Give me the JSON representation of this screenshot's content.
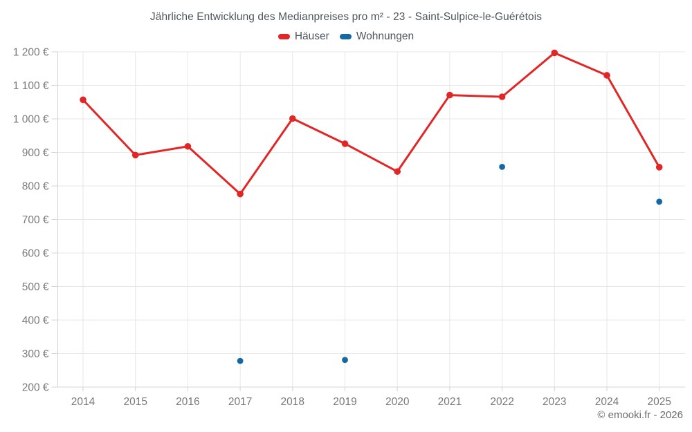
{
  "title": "Jährliche Entwicklung des Medianpreises pro m² - 23 - Saint-Sulpice-le-Guérétois",
  "footer": "© emooki.fr - 2026",
  "legend": {
    "items": [
      {
        "label": "Häuser",
        "color": "#e12626"
      },
      {
        "label": "Wohnungen",
        "color": "#1668a2"
      }
    ]
  },
  "colors": {
    "grid": "#e7e7e7",
    "axis": "#d4d4d4",
    "tick_text": "#77797b",
    "title_text": "#4d565e",
    "footer_text": "#6b6b6b",
    "hauser": "#e12626",
    "wohnungen": "#1668a2"
  },
  "chart_data": {
    "type": "line",
    "title": "Jährliche Entwicklung des Medianpreises pro m² - 23 - Saint-Sulpice-le-Guérétois",
    "categories": [
      "2014",
      "2015",
      "2016",
      "2017",
      "2018",
      "2019",
      "2020",
      "2021",
      "2022",
      "2023",
      "2024",
      "2025"
    ],
    "series": [
      {
        "name": "Häuser",
        "type": "line",
        "color": "#e12626",
        "values": [
          1057,
          892,
          918,
          776,
          1001,
          926,
          843,
          1071,
          1066,
          1197,
          1130,
          856
        ]
      },
      {
        "name": "Wohnungen",
        "type": "scatter",
        "color": "#1668a2",
        "values": [
          null,
          null,
          null,
          278,
          null,
          281,
          null,
          null,
          857,
          null,
          null,
          753
        ]
      }
    ],
    "xlabel": "",
    "ylabel": "",
    "ylim": [
      200,
      1200
    ],
    "grid": true,
    "legend_position": "top",
    "y_ticks": [
      {
        "value": 200,
        "label": "200 €"
      },
      {
        "value": 300,
        "label": "300 €"
      },
      {
        "value": 400,
        "label": "400 €"
      },
      {
        "value": 500,
        "label": "500 €"
      },
      {
        "value": 600,
        "label": "600 €"
      },
      {
        "value": 700,
        "label": "700 €"
      },
      {
        "value": 800,
        "label": "800 €"
      },
      {
        "value": 900,
        "label": "900 €"
      },
      {
        "value": 1000,
        "label": "1 000 €"
      },
      {
        "value": 1100,
        "label": "1 100 €"
      },
      {
        "value": 1200,
        "label": "1 200 €"
      }
    ]
  }
}
